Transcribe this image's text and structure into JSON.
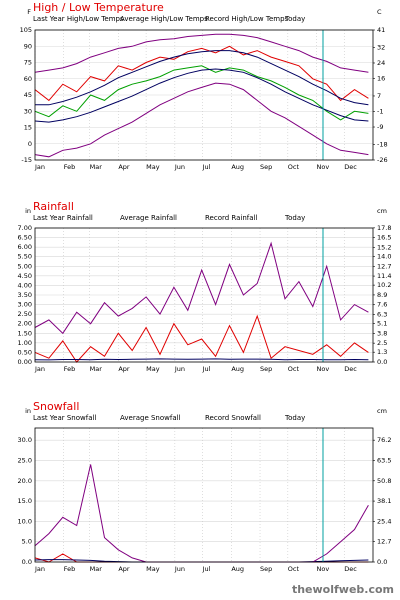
{
  "watermark": "thewolfweb.com",
  "chart_data": [
    {
      "type": "line",
      "title": "High / Low Temperature",
      "y_label": "F",
      "y2_label": "C",
      "x": [
        1,
        16,
        31,
        46,
        61,
        76,
        91,
        106,
        121,
        136,
        151,
        166,
        181,
        196,
        211,
        226,
        241,
        256,
        271,
        286,
        301,
        316,
        331,
        346,
        361
      ],
      "xlim": [
        1,
        366
      ],
      "xticks": [
        {
          "value": 1,
          "label": "Jan"
        },
        {
          "value": 32,
          "label": "Feb"
        },
        {
          "value": 60,
          "label": "Mar"
        },
        {
          "value": 91,
          "label": "Apr"
        },
        {
          "value": 121,
          "label": "May"
        },
        {
          "value": 152,
          "label": "Jun"
        },
        {
          "value": 182,
          "label": "Jul"
        },
        {
          "value": 213,
          "label": "Aug"
        },
        {
          "value": 244,
          "label": "Sep"
        },
        {
          "value": 274,
          "label": "Oct"
        },
        {
          "value": 305,
          "label": "Nov"
        },
        {
          "value": 335,
          "label": "Dec"
        }
      ],
      "ylim": [
        -15,
        105
      ],
      "yticks": [
        105,
        90,
        75,
        60,
        45,
        30,
        15,
        0,
        -15
      ],
      "y2lim": [
        -26,
        41
      ],
      "y2ticks": [
        41,
        32,
        24,
        16,
        7,
        -1,
        -9,
        -18,
        -26
      ],
      "grid": true,
      "today": 312,
      "today_label": "Today",
      "today_color": "#00a0a0",
      "series": [
        {
          "name": "Last Year High/Low Temps",
          "color": "#e00000",
          "low_color": "#00a000",
          "high": [
            50,
            40,
            55,
            48,
            62,
            58,
            72,
            68,
            75,
            80,
            78,
            85,
            88,
            84,
            90,
            82,
            86,
            80,
            76,
            72,
            60,
            55,
            40,
            50,
            42
          ],
          "low": [
            30,
            25,
            35,
            30,
            45,
            40,
            50,
            55,
            58,
            62,
            68,
            70,
            72,
            66,
            70,
            68,
            62,
            58,
            52,
            45,
            40,
            30,
            22,
            30,
            28
          ]
        },
        {
          "name": "Average High/Low Temps",
          "color": "#000060",
          "low_color": "#000060",
          "high": [
            36,
            36,
            39,
            43,
            48,
            54,
            61,
            66,
            71,
            76,
            80,
            83,
            85,
            86,
            86,
            84,
            80,
            74,
            68,
            62,
            55,
            49,
            42,
            38,
            36
          ],
          "low": [
            21,
            20,
            22,
            25,
            29,
            34,
            39,
            44,
            50,
            56,
            61,
            65,
            68,
            69,
            68,
            66,
            61,
            55,
            48,
            42,
            36,
            31,
            26,
            22,
            21
          ]
        },
        {
          "name": "Record High/Low Temps",
          "color": "#800080",
          "low_color": "#800080",
          "high": [
            66,
            68,
            70,
            74,
            80,
            84,
            88,
            90,
            94,
            96,
            97,
            99,
            100,
            101,
            101,
            100,
            98,
            94,
            90,
            86,
            80,
            76,
            70,
            68,
            66
          ],
          "low": [
            -10,
            -12,
            -6,
            -4,
            0,
            8,
            14,
            20,
            28,
            36,
            42,
            48,
            52,
            56,
            55,
            50,
            40,
            30,
            24,
            16,
            8,
            0,
            -6,
            -8,
            -10
          ]
        }
      ]
    },
    {
      "type": "line",
      "title": "Rainfall",
      "y_label": "in",
      "y2_label": "cm",
      "x": [
        1,
        16,
        31,
        46,
        61,
        76,
        91,
        106,
        121,
        136,
        151,
        166,
        181,
        196,
        211,
        226,
        241,
        256,
        271,
        286,
        301,
        316,
        331,
        346,
        361
      ],
      "xlim": [
        1,
        366
      ],
      "xticks": [
        {
          "value": 1,
          "label": "Jan"
        },
        {
          "value": 32,
          "label": "Feb"
        },
        {
          "value": 60,
          "label": "Mar"
        },
        {
          "value": 91,
          "label": "Apr"
        },
        {
          "value": 121,
          "label": "May"
        },
        {
          "value": 152,
          "label": "Jun"
        },
        {
          "value": 182,
          "label": "Jul"
        },
        {
          "value": 213,
          "label": "Aug"
        },
        {
          "value": 244,
          "label": "Sep"
        },
        {
          "value": 274,
          "label": "Oct"
        },
        {
          "value": 305,
          "label": "Nov"
        },
        {
          "value": 335,
          "label": "Dec"
        }
      ],
      "ylim": [
        0,
        7
      ],
      "yticks": [
        {
          "value": 7,
          "label": "7.00"
        },
        {
          "value": 6.5,
          "label": "6.50"
        },
        {
          "value": 6,
          "label": "6.00"
        },
        {
          "value": 5.5,
          "label": "5.50"
        },
        {
          "value": 5,
          "label": "5.00"
        },
        {
          "value": 4.5,
          "label": "4.50"
        },
        {
          "value": 4,
          "label": "4.00"
        },
        {
          "value": 3.5,
          "label": "3.50"
        },
        {
          "value": 3,
          "label": "3.00"
        },
        {
          "value": 2.5,
          "label": "2.50"
        },
        {
          "value": 2,
          "label": "2.00"
        },
        {
          "value": 1.5,
          "label": "1.50"
        },
        {
          "value": 1,
          "label": "1.00"
        },
        {
          "value": 0.5,
          "label": "0.50"
        },
        {
          "value": 0,
          "label": "0.00"
        }
      ],
      "y2lim": [
        0,
        17.78
      ],
      "y2ticks": [
        17.8,
        16.5,
        15.2,
        {
          "value": 14,
          "label": "14.0"
        },
        12.7,
        11.4,
        10.2,
        8.9,
        7.6,
        6.3,
        5.1,
        3.8,
        2.5,
        1.3,
        {
          "value": 0,
          "label": "0.0"
        }
      ],
      "grid": true,
      "today": 312,
      "today_label": "Today",
      "today_color": "#00a0a0",
      "series": [
        {
          "name": "Last Year Rainfall",
          "color": "#e00000",
          "values": [
            0.5,
            0.2,
            1.1,
            0,
            0.8,
            0.3,
            1.5,
            0.6,
            1.8,
            0.4,
            2.0,
            0.9,
            1.2,
            0.3,
            1.9,
            0.5,
            2.4,
            0.2,
            0.8,
            0.6,
            0.4,
            0.9,
            0.3,
            1.0,
            0.5
          ]
        },
        {
          "name": "Average Rainfall",
          "color": "#000060",
          "values": [
            0.12,
            0.11,
            0.13,
            0.13,
            0.12,
            0.14,
            0.13,
            0.14,
            0.15,
            0.16,
            0.15,
            0.14,
            0.15,
            0.16,
            0.14,
            0.15,
            0.15,
            0.14,
            0.12,
            0.13,
            0.13,
            0.12,
            0.12,
            0.13,
            0.12
          ]
        },
        {
          "name": "Record Rainfall",
          "color": "#800080",
          "values": [
            1.8,
            2.2,
            1.5,
            2.6,
            2.0,
            3.1,
            2.4,
            2.8,
            3.4,
            2.5,
            3.9,
            2.7,
            4.8,
            3.0,
            5.1,
            3.5,
            4.1,
            6.2,
            3.3,
            4.2,
            2.9,
            5.0,
            2.2,
            3.0,
            2.6
          ]
        }
      ]
    },
    {
      "type": "line",
      "title": "Snowfall",
      "y_label": "in",
      "y2_label": "cm",
      "x": [
        1,
        16,
        31,
        46,
        61,
        76,
        91,
        106,
        121,
        136,
        151,
        166,
        181,
        196,
        211,
        226,
        241,
        256,
        271,
        286,
        301,
        316,
        331,
        346,
        361
      ],
      "xlim": [
        1,
        366
      ],
      "xticks": [
        {
          "value": 1,
          "label": "Jan"
        },
        {
          "value": 32,
          "label": "Feb"
        },
        {
          "value": 60,
          "label": "Mar"
        },
        {
          "value": 91,
          "label": "Apr"
        },
        {
          "value": 121,
          "label": "May"
        },
        {
          "value": 152,
          "label": "Jun"
        },
        {
          "value": 182,
          "label": "Jul"
        },
        {
          "value": 213,
          "label": "Aug"
        },
        {
          "value": 244,
          "label": "Sep"
        },
        {
          "value": 274,
          "label": "Oct"
        },
        {
          "value": 305,
          "label": "Nov"
        },
        {
          "value": 335,
          "label": "Dec"
        }
      ],
      "ylim": [
        0,
        33
      ],
      "yticks": [
        {
          "value": 30,
          "label": "30.0"
        },
        {
          "value": 25,
          "label": "25.0"
        },
        {
          "value": 20,
          "label": "20.0"
        },
        {
          "value": 15,
          "label": "15.0"
        },
        {
          "value": 10,
          "label": "10.0"
        },
        {
          "value": 5,
          "label": "5.0"
        },
        {
          "value": 0,
          "label": "0.0"
        }
      ],
      "y2lim": [
        0,
        83.82
      ],
      "y2ticks": [
        76.2,
        63.5,
        50.8,
        38.1,
        25.4,
        12.7,
        {
          "value": 0,
          "label": "0.0"
        }
      ],
      "grid": true,
      "today": 312,
      "today_label": "Today",
      "today_color": "#00a0a0",
      "series": [
        {
          "name": "Last Year Snowfall",
          "color": "#e00000",
          "values": [
            1,
            0,
            2,
            0,
            0,
            0,
            0,
            0,
            0,
            0,
            0,
            0,
            0,
            0,
            0,
            0,
            0,
            0,
            0,
            0,
            0,
            0,
            0,
            0,
            0
          ]
        },
        {
          "name": "Average Snowfall",
          "color": "#000060",
          "values": [
            0.5,
            0.6,
            0.6,
            0.5,
            0.4,
            0.2,
            0.1,
            0,
            0,
            0,
            0,
            0,
            0,
            0,
            0,
            0,
            0,
            0,
            0,
            0,
            0.1,
            0.2,
            0.3,
            0.4,
            0.5
          ]
        },
        {
          "name": "Record Snowfall",
          "color": "#800080",
          "values": [
            4,
            7,
            11,
            9,
            24,
            6,
            3,
            1,
            0,
            0,
            0,
            0,
            0,
            0,
            0,
            0,
            0,
            0,
            0,
            0,
            0,
            2,
            5,
            8,
            14
          ]
        }
      ]
    }
  ]
}
